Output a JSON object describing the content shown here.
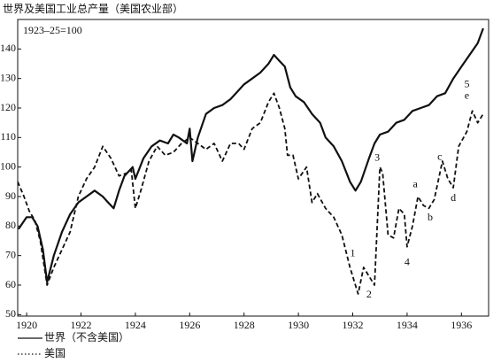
{
  "chart_data": {
    "type": "line",
    "title": "世界及美国工业总产量（美国农业部）",
    "subtitle": "1923–25=100",
    "xlim": [
      1919.67,
      1937
    ],
    "ylim": [
      49.5,
      150
    ],
    "xticks": [
      1920,
      1922,
      1924,
      1926,
      1928,
      1930,
      1932,
      1934,
      1936
    ],
    "yticks": [
      50,
      60,
      70,
      80,
      90,
      100,
      110,
      120,
      130,
      140
    ],
    "series": [
      {
        "name": "世界（不含美国）",
        "color": "#111111",
        "line_style": "solid",
        "x": [
          1919.7,
          1920.0,
          1920.2,
          1920.4,
          1920.6,
          1920.75,
          1921.0,
          1921.3,
          1921.6,
          1921.9,
          1922.2,
          1922.5,
          1922.8,
          1923.0,
          1923.2,
          1923.4,
          1923.6,
          1923.9,
          1924.0,
          1924.3,
          1924.6,
          1924.9,
          1925.2,
          1925.4,
          1925.6,
          1925.9,
          1926.0,
          1926.1,
          1926.3,
          1926.6,
          1926.9,
          1927.2,
          1927.5,
          1927.8,
          1928.0,
          1928.3,
          1928.6,
          1928.9,
          1929.1,
          1929.3,
          1929.5,
          1929.7,
          1929.9,
          1930.2,
          1930.5,
          1930.8,
          1931.0,
          1931.3,
          1931.6,
          1931.9,
          1932.1,
          1932.3,
          1932.6,
          1932.8,
          1933.0,
          1933.3,
          1933.6,
          1933.9,
          1934.2,
          1934.5,
          1934.8,
          1935.1,
          1935.4,
          1935.7,
          1936.0,
          1936.3,
          1936.6,
          1936.8
        ],
        "values": [
          79,
          83,
          83,
          80,
          72,
          61,
          70,
          78,
          84,
          88,
          90,
          92,
          90,
          88,
          86,
          92,
          97,
          100,
          96,
          103,
          107,
          109,
          108,
          111,
          110,
          108,
          113,
          102,
          110,
          118,
          120,
          121,
          123,
          126,
          128,
          130,
          132,
          135,
          138,
          136,
          134,
          127,
          124,
          122,
          118,
          115,
          110,
          107,
          102,
          95,
          92,
          95,
          103,
          108,
          111,
          112,
          115,
          116,
          119,
          120,
          121,
          124,
          125,
          130,
          134,
          138,
          142,
          147
        ]
      },
      {
        "name": "美国",
        "color": "#111111",
        "line_style": "dashed",
        "x": [
          1919.67,
          1919.9,
          1920.1,
          1920.3,
          1920.5,
          1920.75,
          1921.0,
          1921.3,
          1921.6,
          1921.9,
          1922.2,
          1922.5,
          1922.8,
          1923.1,
          1923.4,
          1923.7,
          1923.85,
          1924.0,
          1924.2,
          1924.5,
          1924.8,
          1925.1,
          1925.4,
          1925.7,
          1926.0,
          1926.3,
          1926.6,
          1926.9,
          1927.2,
          1927.5,
          1927.8,
          1928.0,
          1928.3,
          1928.6,
          1928.9,
          1929.1,
          1929.3,
          1929.5,
          1929.6,
          1929.8,
          1930.0,
          1930.3,
          1930.5,
          1930.7,
          1931.0,
          1931.3,
          1931.6,
          1931.9,
          1932.2,
          1932.4,
          1932.6,
          1932.8,
          1933.0,
          1933.1,
          1933.3,
          1933.5,
          1933.7,
          1933.9,
          1934.0,
          1934.2,
          1934.4,
          1934.6,
          1934.8,
          1935.0,
          1935.3,
          1935.5,
          1935.7,
          1935.9,
          1936.2,
          1936.4,
          1936.6,
          1936.8
        ],
        "values": [
          95,
          90,
          85,
          82,
          75,
          60,
          66,
          72,
          78,
          90,
          96,
          100,
          107,
          103,
          97,
          98,
          99,
          86,
          92,
          102,
          107,
          104,
          105,
          108,
          110,
          108,
          106,
          108,
          102,
          108,
          108,
          106,
          113,
          115,
          122,
          125,
          120,
          113,
          104,
          104,
          96,
          100,
          88,
          91,
          86,
          83,
          77,
          66,
          57,
          66,
          63,
          60,
          100,
          98,
          77,
          76,
          86,
          84,
          73,
          80,
          90,
          87,
          86,
          89,
          102,
          96,
          93,
          107,
          112,
          119,
          115,
          118
        ]
      }
    ],
    "annotations": [
      {
        "text": "1",
        "x": 1932.0,
        "y": 70.6
      },
      {
        "text": "2",
        "x": 1932.6,
        "y": 56.7
      },
      {
        "text": "3",
        "x": 1932.9,
        "y": 103
      },
      {
        "text": "4",
        "x": 1934.0,
        "y": 67.6
      },
      {
        "text": "a",
        "x": 1934.3,
        "y": 94
      },
      {
        "text": "b",
        "x": 1934.85,
        "y": 82.7
      },
      {
        "text": "c",
        "x": 1935.2,
        "y": 103.3
      },
      {
        "text": "d",
        "x": 1935.7,
        "y": 89.4
      },
      {
        "text": "5",
        "x": 1936.2,
        "y": 127.9
      },
      {
        "text": "e",
        "x": 1936.2,
        "y": 124
      }
    ]
  }
}
